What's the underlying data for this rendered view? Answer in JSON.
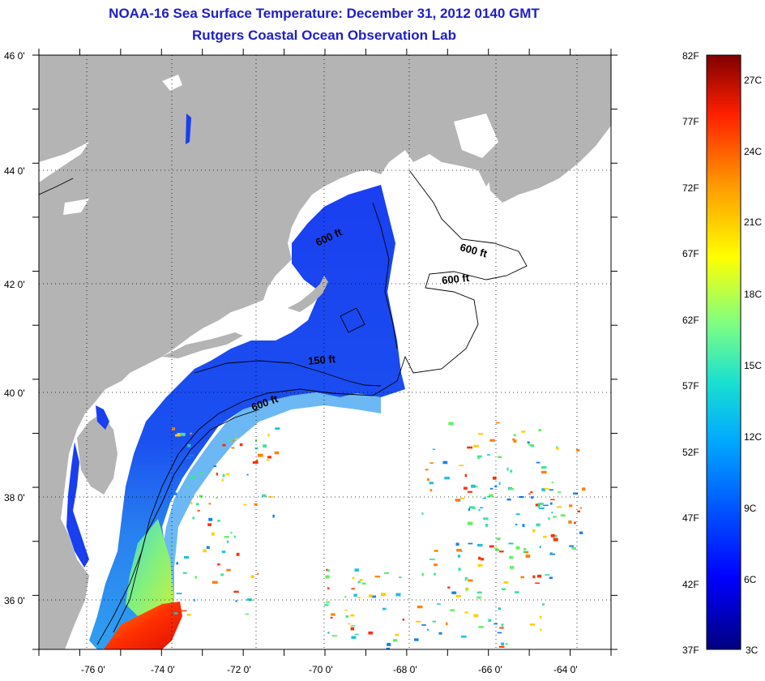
{
  "header": {
    "title": "NOAA-16 Sea Surface Temperature:  December 31, 2012 0140 GMT",
    "subtitle": "Rutgers Coastal Ocean Observation Lab"
  },
  "map": {
    "lat_labels": [
      "46 0'",
      "44 0'",
      "42 0'",
      "40 0'",
      "38 0'",
      "36 0'"
    ],
    "lon_labels": [
      "-76 0'",
      "-74 0'",
      "-72 0'",
      "-70 0'",
      "-68 0'",
      "-66 0'",
      "-64 0'"
    ],
    "contour_labels": [
      "600 ft",
      "600 ft",
      "600 ft",
      "150 ft",
      "600 ft"
    ],
    "colors": {
      "land": "#b4b4b4",
      "ocean_cloud": "#ffffff",
      "cold_water": "#1030e0",
      "warm_water": "#e02000"
    }
  },
  "colorbar": {
    "f_labels": [
      "82F",
      "77F",
      "72F",
      "67F",
      "62F",
      "57F",
      "52F",
      "47F",
      "42F",
      "37F"
    ],
    "c_labels": [
      "27C",
      "24C",
      "21C",
      "18C",
      "15C",
      "12C",
      "9C",
      "6C",
      "3C"
    ]
  }
}
